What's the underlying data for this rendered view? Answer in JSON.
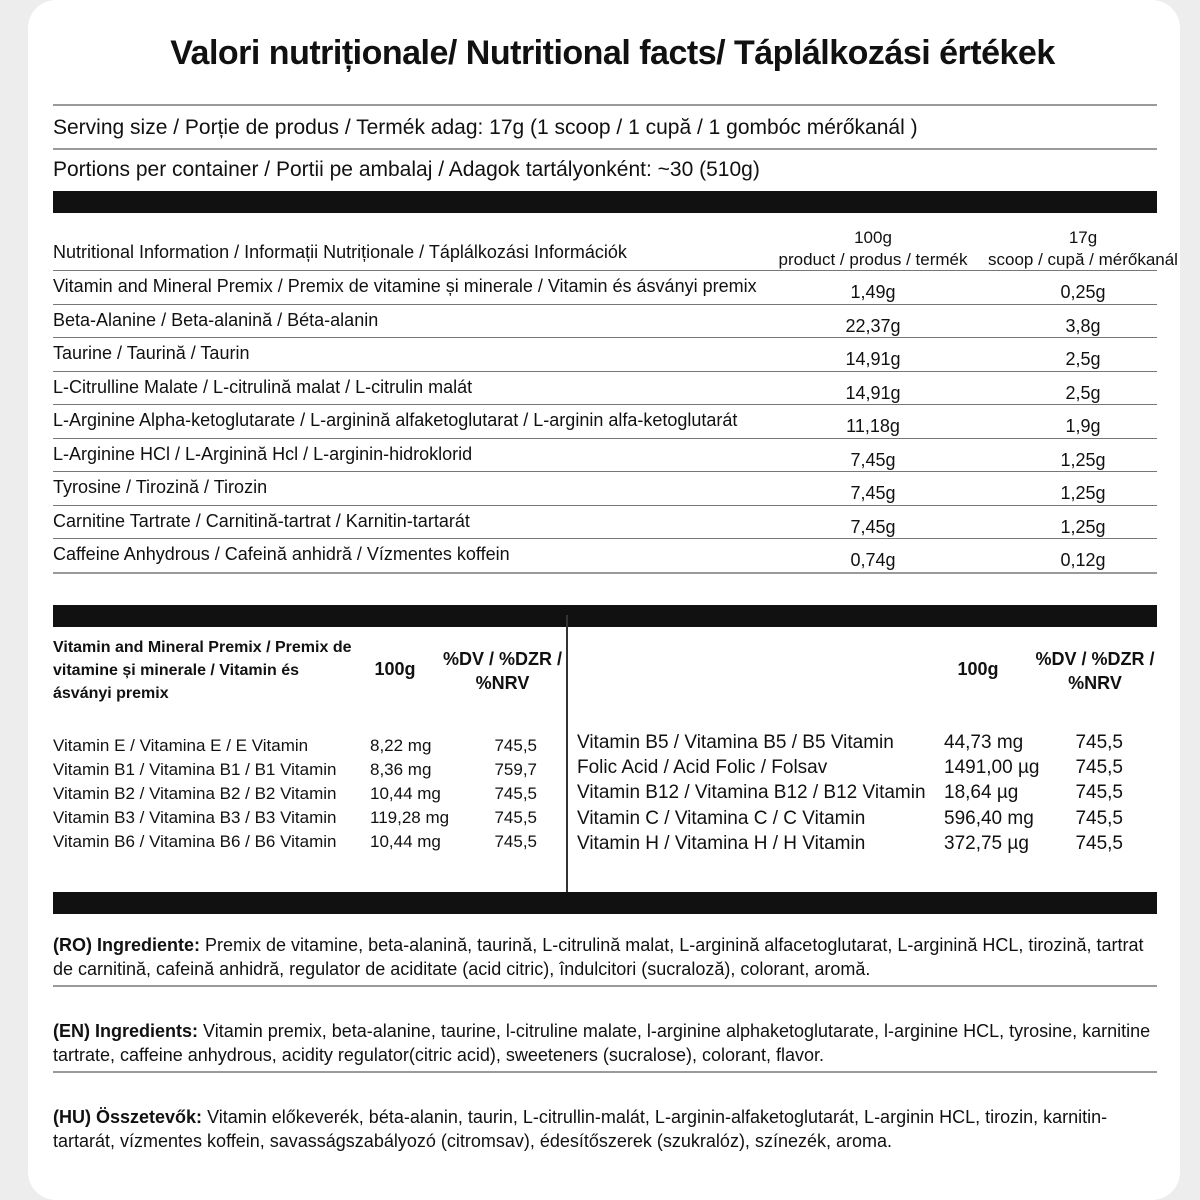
{
  "title": "Valori nutriționale/ Nutritional facts/ Táplálkozási értékek",
  "serving_size": "Serving size / Porție de produs / Termék adag: 17g (1 scoop / 1 cupă / 1 gombóc mérőkanál )",
  "portions": "Portions per container / Portii pe ambalaj / Adagok tartályonként: ~30 (510g)",
  "nutrition_table": {
    "header": {
      "label": "Nutritional Information / Informații Nutriționale / Táplálkozási Információk",
      "col1": [
        "100g",
        "product / produs / termék"
      ],
      "col2": [
        "17g",
        "scoop / cupă / mérőkanál"
      ]
    },
    "rows": [
      [
        "Vitamin and Mineral Premix / Premix de vitamine și minerale / Vitamin és ásványi premix",
        "1,49g",
        "0,25g"
      ],
      [
        "Beta-Alanine / Beta-alanină / Béta-alanin",
        "22,37g",
        "3,8g"
      ],
      [
        "Taurine / Taurină / Taurin",
        "14,91g",
        "2,5g"
      ],
      [
        "L-Citrulline Malate / L-citrulină malat / L-citrulin malát",
        "14,91g",
        "2,5g"
      ],
      [
        "L-Arginine Alpha-ketoglutarate / L-arginină alfaketoglutarat / L-arginin alfa-ketoglutarát",
        "11,18g",
        "1,9g"
      ],
      [
        "L-Arginine HCl / L-Arginină Hcl / L-arginin-hidroklorid",
        "7,45g",
        "1,25g"
      ],
      [
        "Tyrosine / Tirozină / Tirozin",
        "7,45g",
        "1,25g"
      ],
      [
        "Carnitine Tartrate / Carnitină-tartrat / Karnitin-tartarát",
        "7,45g",
        "1,25g"
      ],
      [
        "Caffeine Anhydrous / Cafeină anhidră / Vízmentes koffein",
        "0,74g",
        "0,12g"
      ]
    ]
  },
  "vitamin_table": {
    "left_header": {
      "name": "Vitamin and Mineral Premix / Premix de vitamine și minerale / Vitamin és ásványi premix",
      "amount": "100g",
      "dv": "%DV / %DZR / %NRV"
    },
    "right_header": {
      "amount": "100g",
      "dv": "%DV / %DZR / %NRV"
    },
    "left_rows": [
      [
        "Vitamin E / Vitamina E / E Vitamin",
        "8,22 mg",
        "745,5"
      ],
      [
        "Vitamin B1 / Vitamina B1 / B1 Vitamin",
        "8,36 mg",
        "759,7"
      ],
      [
        "Vitamin B2 / Vitamina B2 / B2 Vitamin",
        "10,44 mg",
        "745,5"
      ],
      [
        "Vitamin B3 / Vitamina B3 / B3 Vitamin",
        "119,28 mg",
        "745,5"
      ],
      [
        "Vitamin B6 / Vitamina B6 / B6 Vitamin",
        "10,44 mg",
        "745,5"
      ]
    ],
    "right_rows": [
      [
        "Vitamin B5 / Vitamina B5 / B5 Vitamin",
        "44,73 mg",
        "745,5"
      ],
      [
        "Folic Acid / Acid Folic / Folsav",
        "1491,00 µg",
        "745,5"
      ],
      [
        "Vitamin B12 / Vitamina B12 / B12 Vitamin",
        "18,64 µg",
        "745,5"
      ],
      [
        "Vitamin C / Vitamina C / C Vitamin",
        "596,40 mg",
        "745,5"
      ],
      [
        "Vitamin H / Vitamina H / H Vitamin",
        "372,75 µg",
        "745,5"
      ]
    ]
  },
  "ingredients": [
    {
      "label": "(RO) Ingrediente:",
      "text": "Premix de vitamine, beta-alanină, taurină, L-citrulină malat, L-arginină alfacetoglutarat, L-arginină HCL, tirozină, tartrat de carnitină, cafeină anhidră, regulator de aciditate (acid citric), îndulcitori (sucraloză), colorant, aromă."
    },
    {
      "label": "(EN) Ingredients:",
      "text": "Vitamin premix, beta-alanine, taurine, l-citruline malate, l-arginine alphaketoglutarate, l-arginine HCL, tyrosine, karnitine tartrate, caffeine anhydrous, acidity regulator(citric acid), sweeteners (sucralose), colorant, flavor."
    },
    {
      "label": "(HU) Összetevők:",
      "text": "Vitamin előkeverék, béta-alanin, taurin, L-citrullin-malát, L-arginin-alfaketoglutarát, L-arginin HCL, tirozin, karnitin-tartarát, vízmentes koffein, savasságszabályozó (citromsav), édesítőszerek (szukralóz), színezék, aroma."
    }
  ]
}
